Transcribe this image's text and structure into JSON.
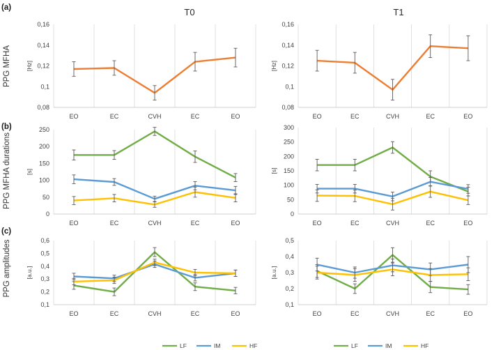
{
  "figure": {
    "col_titles": [
      "T0",
      "T1"
    ],
    "row_labels": [
      "PPG MFHA",
      "PPG MFHA durations",
      "PPG amplitudes"
    ],
    "panel_labels": [
      "(a)",
      "(b)",
      "(c)"
    ]
  },
  "colors": {
    "LF": "#70AD47",
    "IM": "#5B9BD5",
    "HF": "#FFC000",
    "MFHA": "#ED7D31"
  },
  "legend": [
    "LF",
    "IM",
    "HF"
  ],
  "chart_data": [
    {
      "type": "line",
      "title": "T0",
      "panel": "(a)",
      "ylabel": "[Hz]",
      "categories": [
        "EO",
        "EC",
        "CVH",
        "EC",
        "EO"
      ],
      "ylim": [
        0.08,
        0.16
      ],
      "yticks": [
        "0,08",
        "0,1",
        "0,12",
        "0,14",
        "0,16"
      ],
      "series": [
        {
          "name": "MFHA",
          "color_key": "MFHA",
          "values": [
            0.117,
            0.118,
            0.094,
            0.124,
            0.128
          ],
          "errors": [
            0.007,
            0.007,
            0.007,
            0.009,
            0.009
          ]
        }
      ]
    },
    {
      "type": "line",
      "title": "T1",
      "panel": "",
      "ylabel": "[Hz]",
      "categories": [
        "EO",
        "EC",
        "CVH",
        "EC",
        "EO"
      ],
      "ylim": [
        0.08,
        0.16
      ],
      "yticks": [
        "0,08",
        "0,1",
        "0,12",
        "0,14",
        "0,16"
      ],
      "series": [
        {
          "name": "MFHA",
          "color_key": "MFHA",
          "values": [
            0.125,
            0.123,
            0.097,
            0.139,
            0.137
          ],
          "errors": [
            0.01,
            0.01,
            0.01,
            0.011,
            0.012
          ]
        }
      ]
    },
    {
      "type": "line",
      "title": "",
      "panel": "(b)",
      "ylabel": "[s]",
      "categories": [
        "EO",
        "EC",
        "CVH",
        "EC",
        "EO"
      ],
      "ylim": [
        0,
        250
      ],
      "yticks": [
        "0",
        "50",
        "100",
        "150",
        "200",
        "250"
      ],
      "series": [
        {
          "name": "LF",
          "color_key": "LF",
          "values": [
            175,
            175,
            245,
            170,
            108
          ],
          "errors": [
            15,
            13,
            12,
            17,
            12
          ]
        },
        {
          "name": "IM",
          "color_key": "IM",
          "values": [
            103,
            95,
            45,
            84,
            70
          ],
          "errors": [
            13,
            10,
            8,
            12,
            12
          ]
        },
        {
          "name": "HF",
          "color_key": "HF",
          "values": [
            40,
            47,
            28,
            65,
            48
          ],
          "errors": [
            12,
            11,
            8,
            15,
            12
          ]
        }
      ]
    },
    {
      "type": "line",
      "title": "",
      "panel": "",
      "ylabel": "[s]",
      "categories": [
        "EO",
        "EC",
        "CVH",
        "EC",
        "EO"
      ],
      "ylim": [
        0,
        300
      ],
      "yticks": [
        "0",
        "50",
        "100",
        "150",
        "200",
        "250",
        "300"
      ],
      "series": [
        {
          "name": "LF",
          "color_key": "LF",
          "values": [
            170,
            170,
            231,
            130,
            78
          ],
          "errors": [
            20,
            20,
            20,
            20,
            15
          ]
        },
        {
          "name": "IM",
          "color_key": "IM",
          "values": [
            88,
            88,
            61,
            112,
            87
          ],
          "errors": [
            15,
            15,
            15,
            15,
            15
          ]
        },
        {
          "name": "HF",
          "color_key": "HF",
          "values": [
            64,
            63,
            34,
            78,
            48
          ],
          "errors": [
            20,
            20,
            20,
            20,
            15
          ]
        }
      ]
    },
    {
      "type": "line",
      "title": "",
      "panel": "(c)",
      "ylabel": "[a.u.]",
      "categories": [
        "EO",
        "EC",
        "CVH",
        "EC",
        "EO"
      ],
      "ylim": [
        0.1,
        0.6
      ],
      "yticks": [
        "0,1",
        "0,2",
        "0,3",
        "0,4",
        "0,5",
        "0,6"
      ],
      "series": [
        {
          "name": "LF",
          "color_key": "LF",
          "values": [
            0.25,
            0.2,
            0.51,
            0.24,
            0.21
          ],
          "errors": [
            0.03,
            0.03,
            0.035,
            0.03,
            0.025
          ]
        },
        {
          "name": "IM",
          "color_key": "IM",
          "values": [
            0.32,
            0.305,
            0.415,
            0.31,
            0.345
          ],
          "errors": [
            0.025,
            0.025,
            0.025,
            0.025,
            0.025
          ]
        },
        {
          "name": "HF",
          "color_key": "HF",
          "values": [
            0.28,
            0.29,
            0.43,
            0.35,
            0.345
          ],
          "errors": [
            0.025,
            0.025,
            0.025,
            0.025,
            0.025
          ]
        }
      ]
    },
    {
      "type": "line",
      "title": "",
      "panel": "",
      "ylabel": "[a.u.]",
      "categories": [
        "EO",
        "EC",
        "CVH",
        "EC",
        "EO"
      ],
      "ylim": [
        0.1,
        0.5
      ],
      "yticks": [
        "0,1",
        "0,2",
        "0,3",
        "0,4",
        "0,5"
      ],
      "series": [
        {
          "name": "LF",
          "color_key": "LF",
          "values": [
            0.31,
            0.2,
            0.41,
            0.21,
            0.195
          ],
          "errors": [
            0.04,
            0.03,
            0.045,
            0.035,
            0.03
          ]
        },
        {
          "name": "IM",
          "color_key": "IM",
          "values": [
            0.35,
            0.3,
            0.345,
            0.32,
            0.35
          ],
          "errors": [
            0.04,
            0.035,
            0.04,
            0.04,
            0.05
          ]
        },
        {
          "name": "HF",
          "color_key": "HF",
          "values": [
            0.3,
            0.285,
            0.32,
            0.285,
            0.29
          ],
          "errors": [
            0.04,
            0.04,
            0.04,
            0.04,
            0.04
          ]
        }
      ]
    }
  ]
}
